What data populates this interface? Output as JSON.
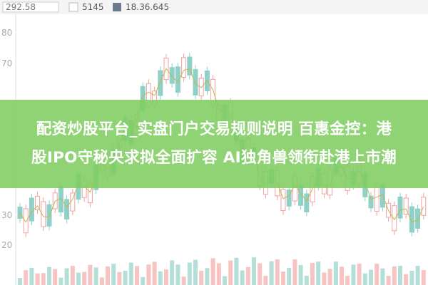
{
  "legend": {
    "items": [
      "292.58",
      "5145",
      "18.36.645"
    ]
  },
  "axis": {
    "labels": [
      "80",
      "70",
      "30",
      "20"
    ]
  },
  "banner": {
    "lines": [
      "配资炒股平台_实盘门户交易规则说明 百惠金控：港",
      "股IPO守秘央求拟全面扩容 AI独角兽领衔赴港上市潮"
    ]
  }
}
